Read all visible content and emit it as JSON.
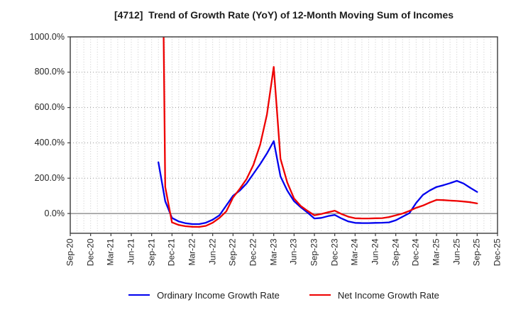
{
  "chart_data": {
    "type": "line",
    "title": "[4712]  Trend of Growth Rate (YoY) of 12-Month Moving Sum of Incomes",
    "x_axis": {
      "tick_labels": [
        "Sep-20",
        "Dec-20",
        "Mar-21",
        "Jun-21",
        "Sep-21",
        "Dec-21",
        "Mar-22",
        "Jun-22",
        "Sep-22",
        "Dec-22",
        "Mar-23",
        "Jun-23",
        "Sep-23",
        "Dec-23",
        "Mar-24",
        "Jun-24",
        "Sep-24",
        "Dec-24",
        "Mar-25",
        "Jun-25",
        "Sep-25",
        "Dec-25"
      ],
      "start_month": "Sep-20",
      "end_month": "Dec-25",
      "months_total": 63,
      "months_per_tick": 3
    },
    "y_axis": {
      "tick_labels": [
        "0.0%",
        "200.0%",
        "400.0%",
        "600.0%",
        "800.0%",
        "1000.0%"
      ],
      "tick_values": [
        0,
        200,
        400,
        600,
        800,
        1000
      ],
      "ylim": [
        -112,
        1000
      ],
      "unit": "percent"
    },
    "grid": {
      "vertical": "monthly-dotted",
      "horizontal": "every-200pct-dotted",
      "zero_line": "solid"
    },
    "legend_position": "bottom-center",
    "series": [
      {
        "name": "Ordinary Income Growth Rate",
        "color": "#0000ee",
        "start_month": "Oct-21",
        "start_month_index": 13,
        "values_pct": [
          290,
          70,
          -25,
          -45,
          -55,
          -60,
          -60,
          -52,
          -35,
          -10,
          45,
          100,
          130,
          170,
          225,
          280,
          340,
          410,
          210,
          130,
          70,
          35,
          5,
          -28,
          -25,
          -15,
          -8,
          -28,
          -45,
          -53,
          -54,
          -54,
          -53,
          -52,
          -50,
          -38,
          -18,
          2,
          60,
          105,
          130,
          150,
          160,
          172,
          185,
          170,
          145,
          122
        ]
      },
      {
        "name": "Net Income Growth Rate",
        "color": "#ee0000",
        "start_month": "Oct-21",
        "start_month_index": 13,
        "values_pct": [
          3800,
          150,
          -50,
          -65,
          -72,
          -75,
          -76,
          -70,
          -52,
          -25,
          12,
          90,
          140,
          195,
          275,
          390,
          560,
          830,
          310,
          175,
          85,
          42,
          15,
          -10,
          -3,
          7,
          16,
          -3,
          -18,
          -27,
          -28,
          -28,
          -27,
          -26,
          -20,
          -10,
          0,
          15,
          32,
          45,
          62,
          77,
          76,
          73,
          71,
          68,
          64,
          57
        ]
      }
    ]
  }
}
